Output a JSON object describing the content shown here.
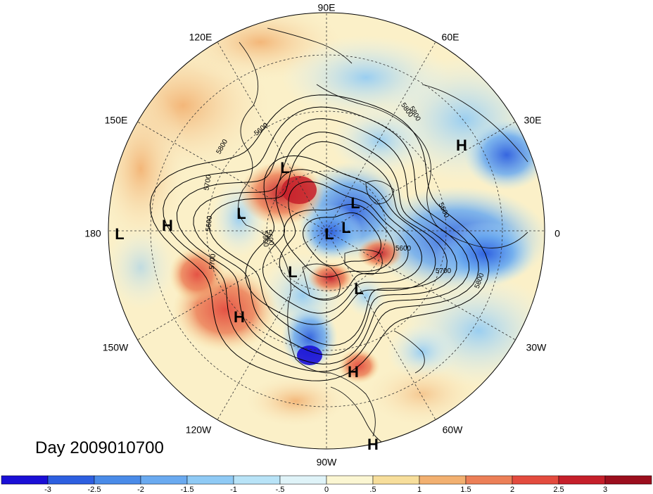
{
  "map": {
    "title_text": "Day 2009010700",
    "projection": "north-polar-stereographic",
    "longitude_labels": [
      "90E",
      "60E",
      "30E",
      "0",
      "30W",
      "60W",
      "90W",
      "120W",
      "150W",
      "180",
      "150E",
      "120E"
    ],
    "highs_lows": [
      "L",
      "L",
      "L",
      "L",
      "L",
      "L",
      "L",
      "L",
      "H",
      "H",
      "H",
      "H",
      "H"
    ],
    "contour_labels": [
      "5800",
      "5600",
      "5800",
      "5700",
      "5600",
      "5600",
      "5700",
      "5800",
      "5900",
      "5600",
      "5600",
      "5700",
      "5800"
    ]
  },
  "colorbar": {
    "ticks": [
      "-3",
      "-2.5",
      "-2",
      "-1.5",
      "-1",
      "-.5",
      "0",
      ".5",
      "1",
      "1.5",
      "2",
      "2.5",
      "3"
    ],
    "colors": [
      "#1a0fd6",
      "#2d5fe0",
      "#4a8be8",
      "#6aaaf0",
      "#8fcaf5",
      "#b8e3f7",
      "#dff3f8",
      "#fbf6d2",
      "#f7de9b",
      "#f2b070",
      "#ec7f57",
      "#e34b3e",
      "#c51f2a",
      "#9b0e1d"
    ]
  }
}
